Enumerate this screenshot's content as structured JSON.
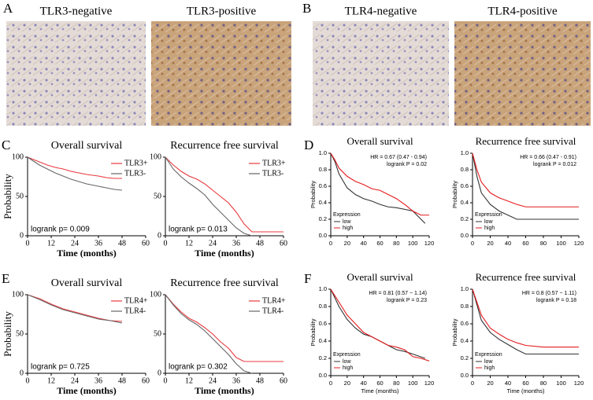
{
  "panel_labels": [
    "A",
    "B",
    "C",
    "D",
    "E",
    "F"
  ],
  "images": [
    {
      "caption": "TLR3-negative"
    },
    {
      "caption": "TLR3-positive"
    },
    {
      "caption": "TLR4-negative"
    },
    {
      "caption": "TLR4-positive"
    }
  ],
  "chart_data": [
    {
      "type": "line",
      "title": "Overall survival",
      "xlabel": "Time (months)",
      "ylabel": "Probability",
      "xlim": [
        0,
        60
      ],
      "xticks": [
        0,
        12,
        24,
        36,
        48,
        60
      ],
      "ylim": [
        0,
        100
      ],
      "yticks": [
        0,
        50,
        100
      ],
      "legend": "upper right",
      "annotations": [
        "logrank p= 0.009"
      ],
      "series": [
        {
          "name": "TLR3+",
          "color": "#e8383d",
          "x": [
            0,
            3,
            6,
            10,
            14,
            18,
            22,
            26,
            30,
            36,
            40,
            44,
            48
          ],
          "values": [
            100,
            97,
            94,
            90,
            87,
            85,
            82,
            80,
            78,
            76,
            74,
            73,
            73
          ]
        },
        {
          "name": "TLR3-",
          "color": "#666666",
          "x": [
            0,
            3,
            6,
            10,
            14,
            18,
            22,
            26,
            30,
            36,
            40,
            44,
            48
          ],
          "values": [
            100,
            95,
            90,
            85,
            80,
            76,
            72,
            69,
            66,
            63,
            61,
            59,
            58
          ]
        }
      ]
    },
    {
      "type": "line",
      "title": "Recurrence free survival",
      "xlabel": "Time (months)",
      "xlim": [
        0,
        60
      ],
      "xticks": [
        0,
        12,
        24,
        36,
        48,
        60
      ],
      "ylim": [
        0,
        100
      ],
      "yticks": [
        0,
        50,
        100
      ],
      "legend": "upper right",
      "annotations": [
        "logrank p= 0.013"
      ],
      "series": [
        {
          "name": "TLR3+",
          "color": "#e8383d",
          "x": [
            0,
            4,
            8,
            12,
            16,
            20,
            24,
            28,
            32,
            36,
            40,
            44,
            50,
            60
          ],
          "values": [
            100,
            90,
            82,
            76,
            72,
            66,
            58,
            50,
            42,
            30,
            15,
            5,
            5,
            5
          ]
        },
        {
          "name": "TLR3-",
          "color": "#666666",
          "x": [
            0,
            4,
            8,
            12,
            16,
            20,
            24,
            28,
            32,
            36,
            40,
            44
          ],
          "values": [
            100,
            85,
            75,
            67,
            60,
            52,
            40,
            30,
            20,
            10,
            3,
            0
          ]
        }
      ]
    },
    {
      "type": "line",
      "title": "Overall survival",
      "ylabel": "Probability",
      "xlim": [
        0,
        120
      ],
      "xticks": [
        0,
        20,
        40,
        60,
        80,
        100,
        120
      ],
      "ylim": [
        0,
        1
      ],
      "yticks": [
        {
          "value": 0,
          "label": "0.0"
        },
        0.2,
        0.4,
        0.6,
        0.8,
        {
          "value": 1,
          "label": "1.0"
        }
      ],
      "legend": "lower left",
      "legend_title": "Expression",
      "annotations": [
        "HR = 0.67 (0.47 - 0.94)",
        "logrank P = 0.02"
      ],
      "series": [
        {
          "name": "low",
          "color": "#333333",
          "x": [
            0,
            5,
            10,
            20,
            30,
            40,
            50,
            60,
            70,
            80,
            100,
            110,
            115
          ],
          "values": [
            1,
            0.9,
            0.75,
            0.58,
            0.5,
            0.45,
            0.42,
            0.38,
            0.35,
            0.34,
            0.3,
            0.2,
            0.15
          ]
        },
        {
          "name": "high",
          "color": "#e41a1c",
          "x": [
            0,
            5,
            10,
            20,
            30,
            40,
            50,
            60,
            70,
            80,
            90,
            100,
            110,
            120
          ],
          "values": [
            1,
            0.92,
            0.82,
            0.72,
            0.66,
            0.62,
            0.57,
            0.55,
            0.5,
            0.45,
            0.38,
            0.3,
            0.25,
            0.25
          ]
        }
      ]
    },
    {
      "type": "line",
      "title": "Recurrence free survival",
      "ylabel": "Probability",
      "xlim": [
        0,
        120
      ],
      "xticks": [
        0,
        20,
        40,
        60,
        80,
        100,
        120
      ],
      "ylim": [
        0,
        1
      ],
      "yticks": [
        {
          "value": 0,
          "label": "0.0"
        },
        0.2,
        0.4,
        0.6,
        0.8,
        {
          "value": 1,
          "label": "1.0"
        }
      ],
      "legend": "lower left",
      "legend_title": "Expression",
      "annotations": [
        "HR = 0.66 (0.47 - 0.91)",
        "logrank P = 0.012"
      ],
      "series": [
        {
          "name": "low",
          "color": "#333333",
          "x": [
            0,
            5,
            10,
            20,
            30,
            40,
            50,
            60,
            80,
            100,
            120
          ],
          "values": [
            1,
            0.72,
            0.52,
            0.38,
            0.3,
            0.25,
            0.2,
            0.2,
            0.2,
            0.2,
            0.2
          ]
        },
        {
          "name": "high",
          "color": "#e41a1c",
          "x": [
            0,
            5,
            10,
            20,
            30,
            40,
            50,
            60,
            80,
            100,
            120
          ],
          "values": [
            1,
            0.8,
            0.65,
            0.52,
            0.46,
            0.42,
            0.38,
            0.35,
            0.35,
            0.35,
            0.35
          ]
        }
      ]
    },
    {
      "type": "line",
      "title": "Overall survival",
      "xlabel": "Time (months)",
      "ylabel": "Probability",
      "xlim": [
        0,
        60
      ],
      "xticks": [
        0,
        12,
        24,
        36,
        48,
        60
      ],
      "ylim": [
        0,
        100
      ],
      "yticks": [
        0,
        50,
        100
      ],
      "legend": "upper right",
      "annotations": [
        "logrank p= 0.725"
      ],
      "series": [
        {
          "name": "TLR4+",
          "color": "#e8383d",
          "x": [
            0,
            6,
            12,
            18,
            24,
            30,
            36,
            42,
            48
          ],
          "values": [
            100,
            95,
            88,
            82,
            78,
            74,
            70,
            67,
            66
          ]
        },
        {
          "name": "TLR4-",
          "color": "#666666",
          "x": [
            0,
            6,
            12,
            18,
            24,
            30,
            36,
            42,
            48
          ],
          "values": [
            100,
            94,
            87,
            81,
            77,
            73,
            69,
            67,
            64
          ]
        }
      ]
    },
    {
      "type": "line",
      "title": "Recurrence free survival",
      "xlabel": "Time (months)",
      "xlim": [
        0,
        60
      ],
      "xticks": [
        0,
        12,
        24,
        36,
        48,
        60
      ],
      "ylim": [
        0,
        100
      ],
      "yticks": [
        0,
        50,
        100
      ],
      "legend": "upper right",
      "annotations": [
        "logrank p= 0.302"
      ],
      "series": [
        {
          "name": "TLR4+",
          "color": "#e8383d",
          "x": [
            0,
            4,
            8,
            12,
            16,
            20,
            24,
            28,
            32,
            36,
            40,
            48,
            60
          ],
          "values": [
            100,
            88,
            78,
            70,
            65,
            58,
            50,
            40,
            32,
            20,
            15,
            15,
            15
          ]
        },
        {
          "name": "TLR4-",
          "color": "#666666",
          "x": [
            0,
            4,
            8,
            12,
            16,
            20,
            24,
            28,
            32,
            36,
            40,
            44
          ],
          "values": [
            100,
            87,
            76,
            68,
            62,
            54,
            44,
            34,
            24,
            12,
            3,
            0
          ]
        }
      ]
    },
    {
      "type": "line",
      "title": "Overall survival",
      "xlabel": "Time (months)",
      "ylabel": "Probability",
      "xlim": [
        0,
        120
      ],
      "xticks": [
        0,
        20,
        40,
        60,
        80,
        100,
        120
      ],
      "ylim": [
        0,
        1
      ],
      "yticks": [
        {
          "value": 0,
          "label": "0.0"
        },
        0.2,
        0.4,
        0.6,
        0.8,
        {
          "value": 1,
          "label": "1.0"
        }
      ],
      "legend": "lower left",
      "legend_title": "Expression",
      "annotations": [
        "HR = 0.81 (0.57 − 1.14)",
        "logrank P = 0.23"
      ],
      "series": [
        {
          "name": "low",
          "color": "#333333",
          "x": [
            0,
            10,
            20,
            30,
            40,
            50,
            60,
            70,
            80,
            90,
            100,
            115
          ],
          "values": [
            1,
            0.8,
            0.65,
            0.55,
            0.48,
            0.45,
            0.4,
            0.35,
            0.3,
            0.28,
            0.25,
            0.2
          ]
        },
        {
          "name": "high",
          "color": "#e41a1c",
          "x": [
            0,
            10,
            20,
            30,
            40,
            50,
            60,
            70,
            80,
            90,
            100,
            110,
            120
          ],
          "values": [
            1,
            0.85,
            0.7,
            0.6,
            0.5,
            0.45,
            0.4,
            0.35,
            0.33,
            0.3,
            0.22,
            0.2,
            0.17
          ]
        }
      ]
    },
    {
      "type": "line",
      "title": "Recurrence free survival",
      "xlabel": "Time (months)",
      "ylabel": "Probability",
      "xlim": [
        0,
        120
      ],
      "xticks": [
        0,
        20,
        40,
        60,
        80,
        100,
        120
      ],
      "ylim": [
        0,
        1
      ],
      "yticks": [
        {
          "value": 0,
          "label": "0.0"
        },
        0.2,
        0.4,
        0.6,
        0.8,
        {
          "value": 1,
          "label": "1.0"
        }
      ],
      "legend": "lower left",
      "legend_title": "Expression",
      "annotations": [
        "HR = 0.8 (0.57 − 1.11)",
        "logrank P = 0.18"
      ],
      "series": [
        {
          "name": "low",
          "color": "#333333",
          "x": [
            0,
            5,
            10,
            20,
            30,
            40,
            50,
            60,
            80,
            100,
            120
          ],
          "values": [
            1,
            0.82,
            0.64,
            0.5,
            0.42,
            0.36,
            0.3,
            0.25,
            0.25,
            0.25,
            0.25
          ]
        },
        {
          "name": "high",
          "color": "#e41a1c",
          "x": [
            0,
            5,
            10,
            20,
            30,
            40,
            50,
            60,
            80,
            100,
            120
          ],
          "values": [
            1,
            0.85,
            0.7,
            0.55,
            0.48,
            0.42,
            0.38,
            0.35,
            0.33,
            0.33,
            0.33
          ]
        }
      ]
    }
  ]
}
